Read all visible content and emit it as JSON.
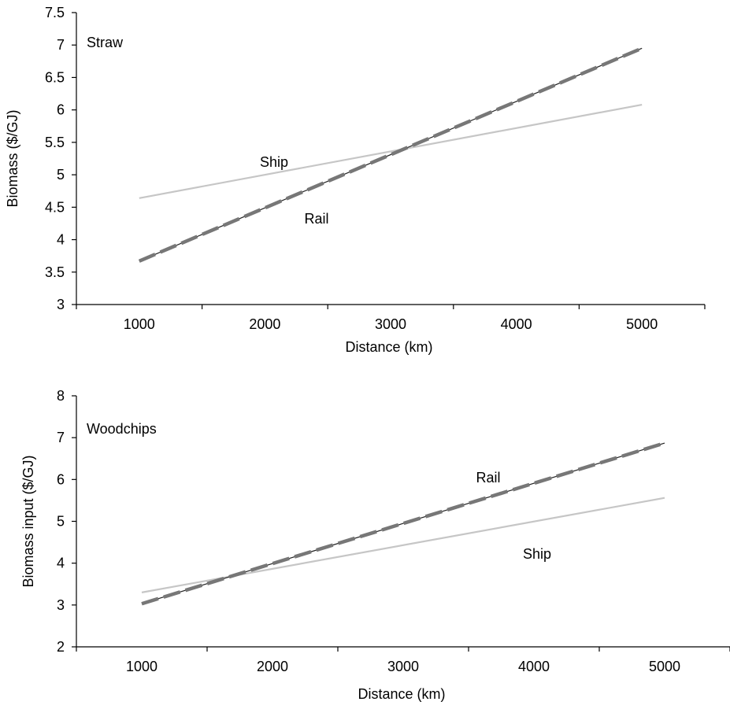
{
  "chart_data": [
    {
      "type": "line",
      "panel_label": "Straw",
      "xlabel": "Distance (km)",
      "ylabel": "Biomass ($/GJ)",
      "xlim": [
        500,
        5500
      ],
      "ylim": [
        3,
        7.5
      ],
      "x_ticks": [
        1000,
        2000,
        3000,
        4000,
        5000
      ],
      "y_ticks": [
        "3",
        "3.5",
        "4",
        "4.5",
        "5",
        "5.5",
        "6",
        "6.5",
        "7",
        "7.5"
      ],
      "grid": false,
      "series": [
        {
          "name": "Ship",
          "style": "solid",
          "color": "#c6c6c6",
          "x": [
            1000,
            5000
          ],
          "y": [
            4.64,
            6.08
          ]
        },
        {
          "name": "Rail",
          "style": "dashed",
          "color": "#777777",
          "x": [
            1000,
            5000
          ],
          "y": [
            3.67,
            6.95
          ]
        }
      ]
    },
    {
      "type": "line",
      "panel_label": "Woodchips",
      "xlabel": "Distance (km)",
      "ylabel": "Biomass input ($/GJ)",
      "xlim": [
        500,
        5500
      ],
      "ylim": [
        2,
        8
      ],
      "x_ticks": [
        1000,
        2000,
        3000,
        4000,
        5000
      ],
      "y_ticks": [
        "2",
        "3",
        "4",
        "5",
        "6",
        "7",
        "8"
      ],
      "grid": false,
      "series": [
        {
          "name": "Ship",
          "style": "solid",
          "color": "#c6c6c6",
          "x": [
            1000,
            5000
          ],
          "y": [
            3.3,
            5.56
          ]
        },
        {
          "name": "Rail",
          "style": "dashed",
          "color": "#777777",
          "x": [
            1000,
            5000
          ],
          "y": [
            3.03,
            6.87
          ]
        }
      ]
    }
  ]
}
